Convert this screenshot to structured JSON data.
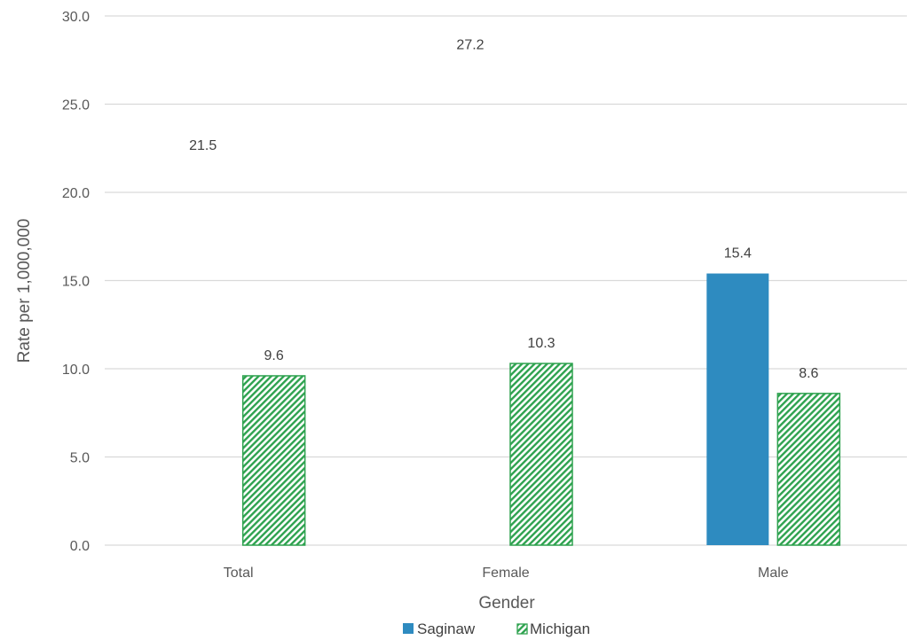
{
  "chart_data": {
    "type": "bar",
    "categories": [
      "Total",
      "Female",
      "Male"
    ],
    "series": [
      {
        "name": "Saginaw",
        "values": [
          21.5,
          27.2,
          15.4
        ],
        "color": "#2e8bc0",
        "fill": "solid"
      },
      {
        "name": "Michigan",
        "values": [
          9.6,
          10.3,
          8.6
        ],
        "color": "#2ea24f",
        "fill": "diagonal-hatch"
      }
    ],
    "xlabel": "Gender",
    "ylabel": "Rate per 1,000,000",
    "ylim": [
      0,
      30
    ],
    "yticks": [
      "0.0",
      "5.0",
      "10.0",
      "15.0",
      "20.0",
      "25.0",
      "30.0"
    ],
    "data_labels": {
      "Saginaw": [
        "21.5",
        "27.2",
        "15.4"
      ],
      "Michigan": [
        "9.6",
        "10.3",
        "8.6"
      ]
    },
    "grid": true,
    "legend_position": "bottom",
    "hidden_bars": [
      "Saginaw Total",
      "Saginaw Female"
    ]
  }
}
